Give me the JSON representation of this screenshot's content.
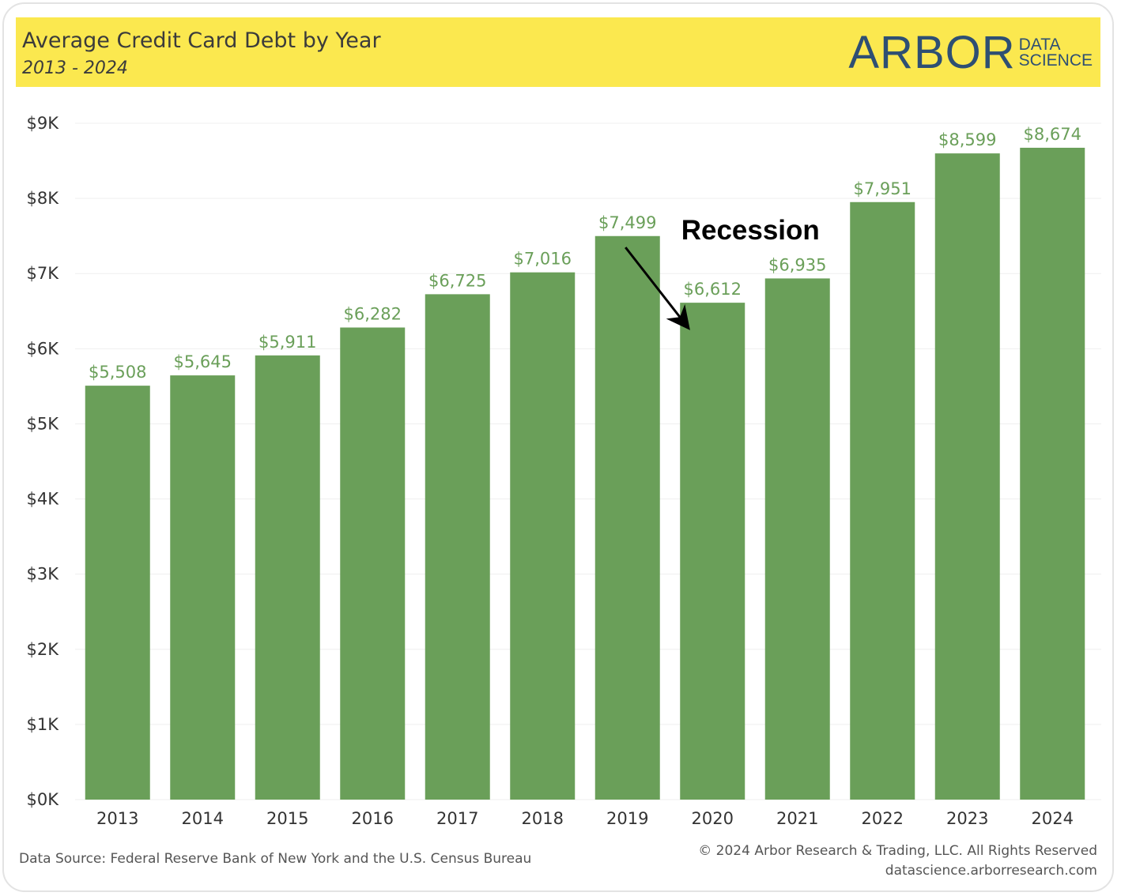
{
  "header": {
    "title": "Average Credit Card Debt by Year",
    "subtitle": "2013 - 2024",
    "logo_main": "ARBOR",
    "logo_line1": "DATA",
    "logo_line2": "SCIENCE"
  },
  "footer": {
    "source": "Data Source: Federal Reserve Bank of New York and the U.S. Census Bureau",
    "copyright": "© 2024 Arbor Research & Trading, LLC. All Rights Reserved",
    "website": "datascience.arborresearch.com"
  },
  "colors": {
    "bar": "#6a9f59",
    "label": "#6a9f59",
    "header_bg": "#fbe84f",
    "grid": "#efefef",
    "axis_text": "#333333",
    "annotation": "#000000"
  },
  "chart_data": {
    "type": "bar",
    "title": "Average Credit Card Debt by Year",
    "subtitle": "2013 - 2024",
    "categories": [
      "2013",
      "2014",
      "2015",
      "2016",
      "2017",
      "2018",
      "2019",
      "2020",
      "2021",
      "2022",
      "2023",
      "2024"
    ],
    "values": [
      5508,
      5645,
      5911,
      6282,
      6725,
      7016,
      7499,
      6612,
      6935,
      7951,
      8599,
      8674
    ],
    "value_labels": [
      "$5,508",
      "$5,645",
      "$5,911",
      "$6,282",
      "$6,725",
      "$7,016",
      "$7,499",
      "$6,612",
      "$6,935",
      "$7,951",
      "$8,599",
      "$8,674"
    ],
    "ylim": [
      0,
      9000
    ],
    "yticks": [
      0,
      1000,
      2000,
      3000,
      4000,
      5000,
      6000,
      7000,
      8000,
      9000
    ],
    "ytick_labels": [
      "$0K",
      "$1K",
      "$2K",
      "$3K",
      "$4K",
      "$5K",
      "$6K",
      "$7K",
      "$8K",
      "$9K"
    ],
    "grid": true,
    "annotation": {
      "text": "Recession",
      "target": "2020"
    }
  }
}
